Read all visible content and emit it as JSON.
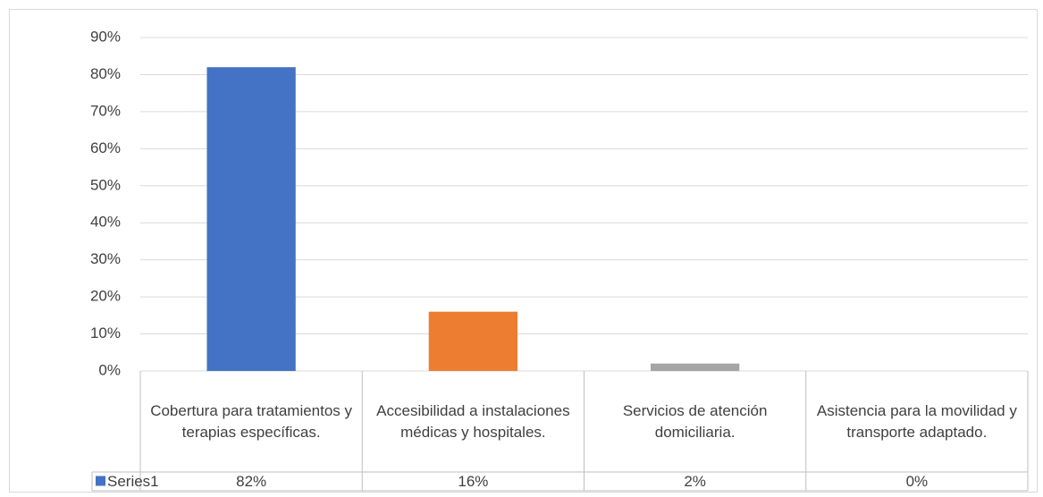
{
  "chart_data": {
    "type": "bar",
    "categories": [
      "Cobertura para tratamientos y terapias específicas.",
      "Accesibilidad a instalaciones médicas y hospitales.",
      "Servicios de atención domiciliaria.",
      "Asistencia para la movilidad y transporte adaptado."
    ],
    "series": [
      {
        "name": "Series1",
        "color": "#4472c4",
        "values": [
          82,
          16,
          2,
          0
        ],
        "value_labels": [
          "82%",
          "16%",
          "2%",
          "0%"
        ]
      }
    ],
    "colors": [
      "#4472c4",
      "#ed7d31",
      "#a5a5a5",
      "#ffc000"
    ],
    "ylim": [
      0,
      90
    ],
    "yticks": [
      {
        "value": 0,
        "label": "0%"
      },
      {
        "value": 10,
        "label": "10%"
      },
      {
        "value": 20,
        "label": "20%"
      },
      {
        "value": 30,
        "label": "30%"
      },
      {
        "value": 40,
        "label": "40%"
      },
      {
        "value": 50,
        "label": "50%"
      },
      {
        "value": 60,
        "label": "60%"
      },
      {
        "value": 70,
        "label": "70%"
      },
      {
        "value": 80,
        "label": "80%"
      },
      {
        "value": 90,
        "label": "90%"
      }
    ],
    "grid": true
  }
}
